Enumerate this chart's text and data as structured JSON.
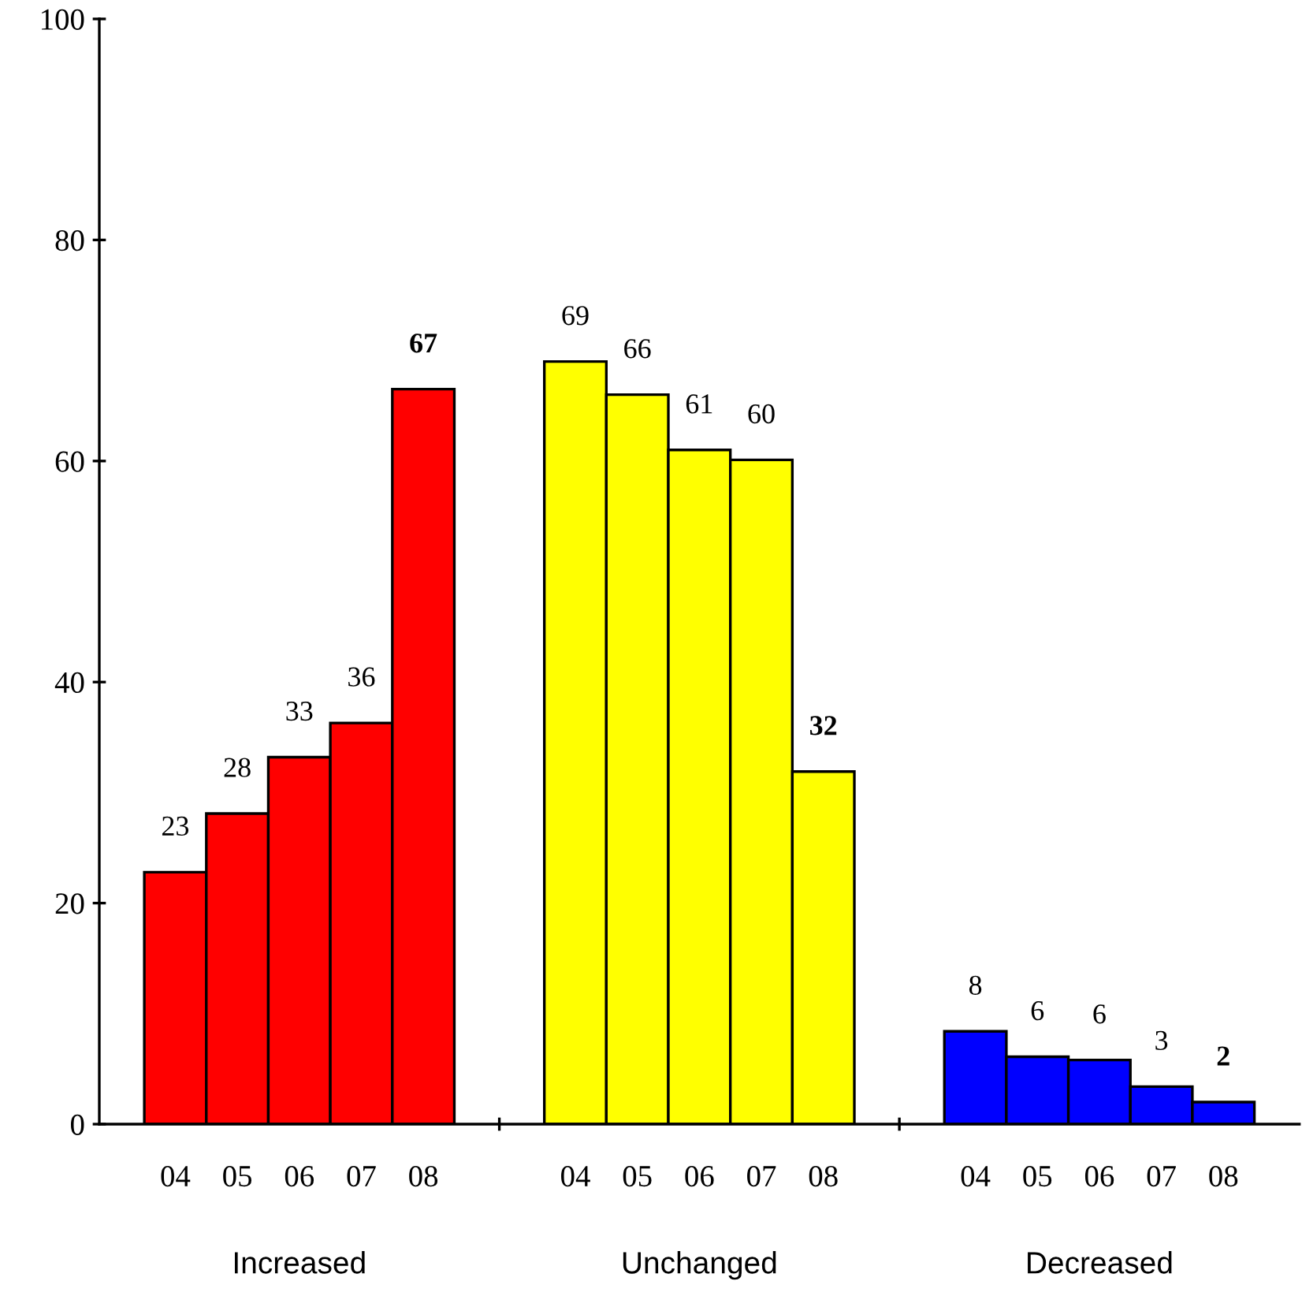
{
  "chart_data": {
    "type": "bar",
    "categories": [
      "Increased",
      "Unchanged",
      "Decreased"
    ],
    "series": [
      {
        "name": "04",
        "colors": [
          "#ff0000",
          "#ffff00",
          "#0000ff"
        ],
        "values": [
          22.8,
          69.0,
          8.4
        ],
        "value_labels": [
          "23",
          "69",
          "8"
        ]
      },
      {
        "name": "05",
        "colors": [
          "#ff0000",
          "#ffff00",
          "#0000ff"
        ],
        "values": [
          28.1,
          66.0,
          6.1
        ],
        "value_labels": [
          "28",
          "66",
          "6"
        ]
      },
      {
        "name": "06",
        "colors": [
          "#ff0000",
          "#ffff00",
          "#0000ff"
        ],
        "values": [
          33.2,
          61.0,
          5.8
        ],
        "value_labels": [
          "33",
          "61",
          "6"
        ]
      },
      {
        "name": "07",
        "colors": [
          "#ff0000",
          "#ffff00",
          "#0000ff"
        ],
        "values": [
          36.3,
          60.1,
          3.4
        ],
        "value_labels": [
          "36",
          "60",
          "3"
        ]
      },
      {
        "name": "08",
        "colors": [
          "#ff0000",
          "#ffff00",
          "#0000ff"
        ],
        "values": [
          66.5,
          31.9,
          2.0
        ],
        "value_labels": [
          "67",
          "32",
          "2"
        ]
      }
    ],
    "ylim": [
      0,
      100
    ],
    "yticks": [
      0,
      20,
      40,
      60,
      80,
      100
    ],
    "grid": false,
    "legend": false
  }
}
